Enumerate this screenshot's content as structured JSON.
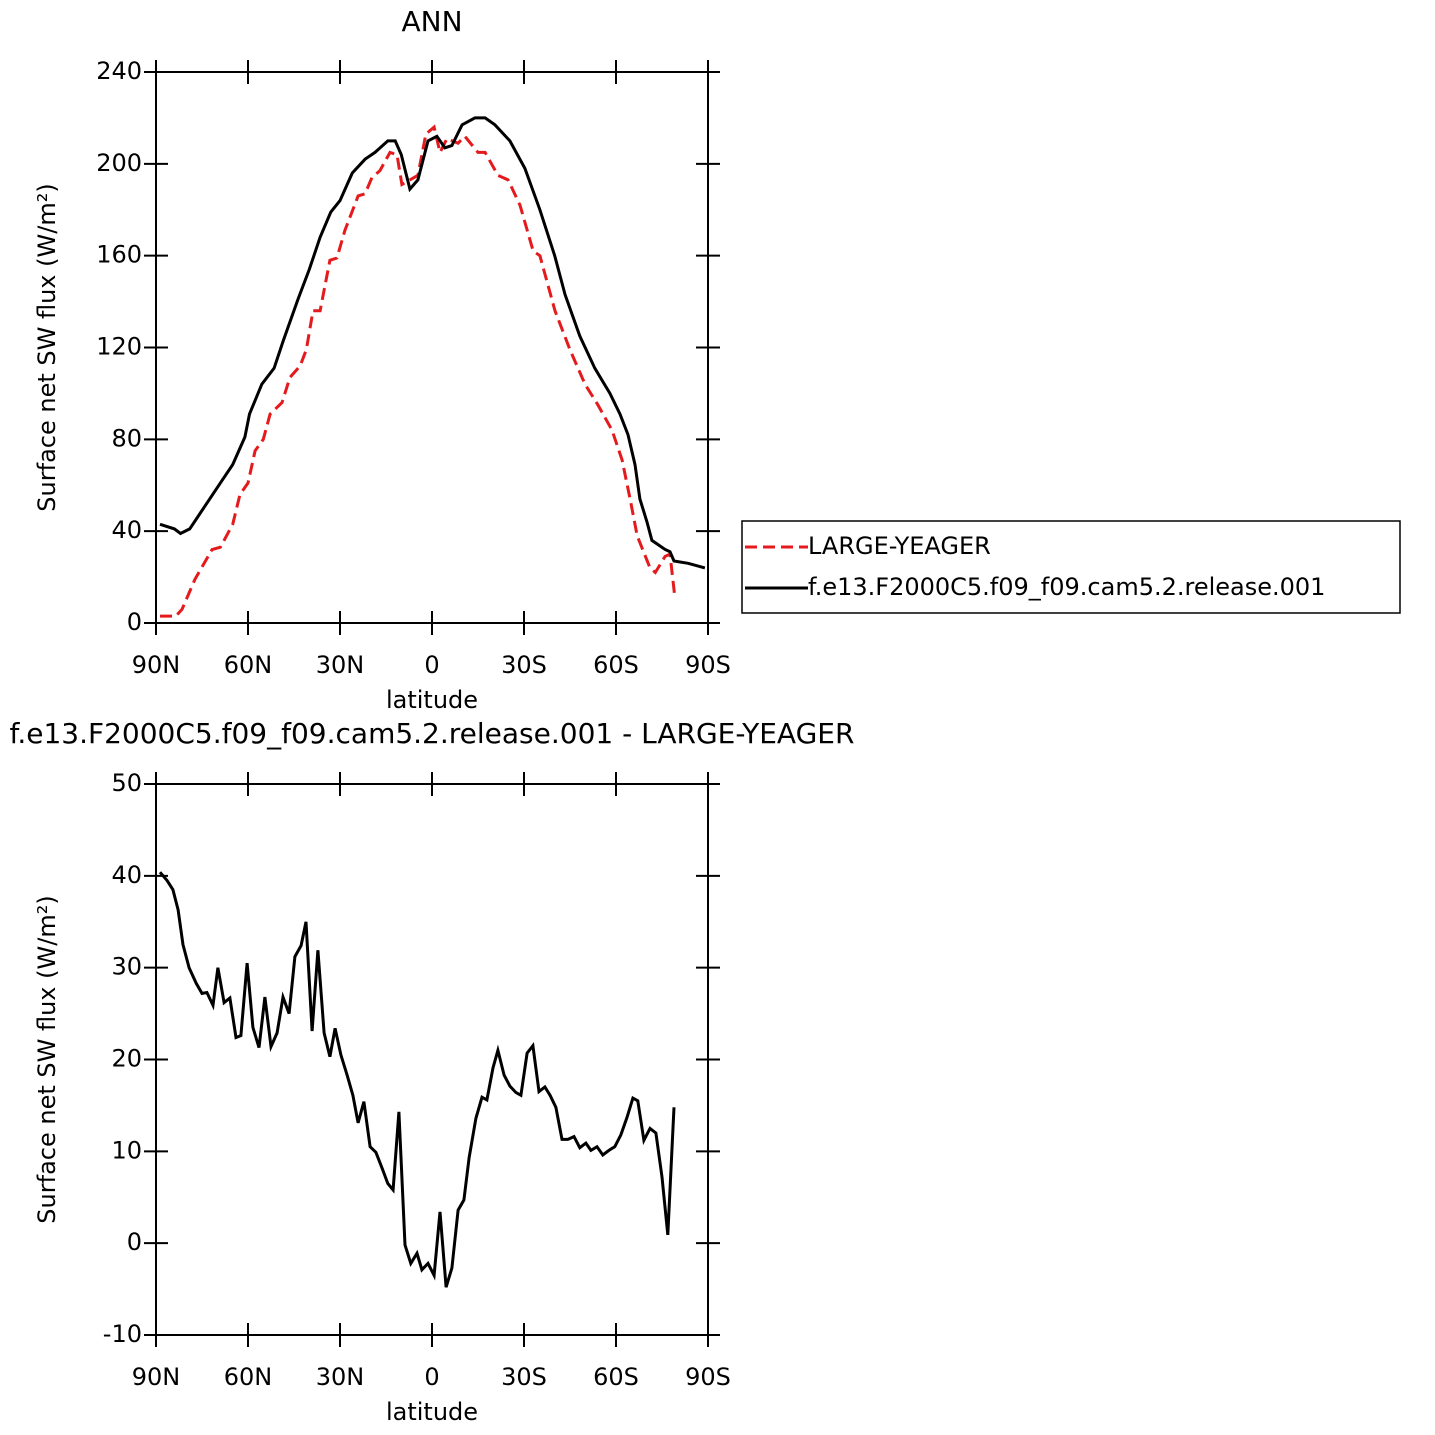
{
  "chart_data": [
    {
      "type": "line",
      "title": "ANN",
      "x_label": "latitude",
      "y_label": "Surface net SW flux (W/m²)",
      "xlim": [
        90,
        -90
      ],
      "ylim": [
        0,
        240
      ],
      "xticks": [
        {
          "value": 90,
          "label": "90N"
        },
        {
          "value": 60,
          "label": "60N"
        },
        {
          "value": 30,
          "label": "30N"
        },
        0,
        {
          "value": -30,
          "label": "30S"
        },
        {
          "value": -60,
          "label": "60S"
        },
        {
          "value": -90,
          "label": "90S"
        }
      ],
      "yticks": [
        0,
        40,
        80,
        120,
        160,
        200,
        240
      ],
      "legend": "right",
      "series": [
        {
          "name": "LARGE-YEAGER",
          "color": "#e41a1c",
          "style": "dashed",
          "x": [
            88.7,
            83.5,
            81.5,
            77.3,
            71.7,
            69,
            65,
            62.6,
            60,
            57.7,
            55,
            52.8,
            48.9,
            46.3,
            43,
            41,
            38.8,
            36.5,
            33.3,
            31,
            28.4,
            24.1,
            21.8,
            19.6,
            17,
            13.7,
            11.4,
            9.8,
            7.2,
            4.6,
            2,
            -0.7,
            -2.6,
            -4.9,
            -8.5,
            -10.7,
            -15,
            -17.3,
            -21.5,
            -24.8,
            -28.7,
            -33,
            -35.2,
            -40.1,
            -45,
            -49.9,
            -54.1,
            -58.7,
            -62,
            -64.6,
            -66.9,
            -71.1,
            -72.8,
            -76,
            -77.6,
            -79.2
          ],
          "values": [
            3,
            3,
            6,
            19,
            32,
            33,
            43,
            56,
            61,
            75,
            80,
            91,
            96,
            107,
            112,
            119,
            136,
            136,
            158,
            159,
            171,
            186,
            187,
            194,
            197,
            205,
            204,
            191,
            193,
            195,
            213,
            216,
            205,
            211,
            209,
            212,
            205,
            205,
            195,
            193,
            182,
            162,
            160,
            136,
            119,
            104,
            95,
            84,
            71,
            54,
            38,
            24,
            22,
            29,
            30,
            11
          ]
        },
        {
          "name": "f.e13.F2000C5.f09_f09.cam5.2.release.001",
          "color": "#000000",
          "style": "solid",
          "x": [
            88.7,
            84,
            82,
            79,
            75,
            68.5,
            65,
            61,
            59.5,
            55.5,
            51.5,
            48.5,
            43.7,
            40,
            36.5,
            33,
            30,
            26,
            21.8,
            18.6,
            14.4,
            12,
            10,
            7.2,
            4.6,
            1.3,
            -1.6,
            -4.2,
            -6.5,
            -9.8,
            -14,
            -17.3,
            -20.5,
            -25.4,
            -30.3,
            -35.2,
            -40,
            -43.4,
            -48.2,
            -53.1,
            -58,
            -61.3,
            -63.9,
            -66.2,
            -67.8,
            -70.1,
            -71.7,
            -76,
            -77.6,
            -78.9,
            -83.5,
            -89
          ],
          "values": [
            43,
            41,
            39,
            41,
            49,
            62,
            69,
            81,
            91,
            104,
            111,
            123,
            141,
            154,
            168,
            179,
            184,
            196,
            202,
            205,
            210,
            210,
            204,
            189,
            193,
            210,
            212,
            207,
            208,
            217,
            220,
            220,
            217,
            210,
            198,
            180,
            160,
            143,
            125,
            111,
            100,
            91,
            82,
            69,
            54,
            44,
            36,
            32,
            31,
            27,
            26,
            24
          ]
        }
      ]
    },
    {
      "type": "line",
      "title": "f.e13.F2000C5.f09_f09.cam5.2.release.001 - LARGE-YEAGER",
      "x_label": "latitude",
      "y_label": "Surface net SW flux (W/m²)",
      "xlim": [
        90,
        -90
      ],
      "ylim": [
        -10,
        50
      ],
      "xticks": [
        {
          "value": 90,
          "label": "90N"
        },
        {
          "value": 60,
          "label": "60N"
        },
        {
          "value": 30,
          "label": "30N"
        },
        0,
        {
          "value": -30,
          "label": "30S"
        },
        {
          "value": -60,
          "label": "60S"
        },
        {
          "value": -90,
          "label": "90S"
        }
      ],
      "yticks": [
        -10,
        0,
        10,
        20,
        30,
        40,
        50
      ],
      "series": [
        {
          "color": "#000000",
          "style": "solid",
          "x": [
            88.7,
            86.4,
            84.5,
            82.8,
            81.2,
            79.2,
            76.9,
            75,
            73.4,
            71.4,
            69.8,
            67.8,
            65.9,
            63.9,
            62.3,
            60.3,
            58.4,
            56.4,
            54.5,
            52.5,
            50.5,
            48.6,
            46.6,
            44.7,
            42.7,
            41.1,
            39.1,
            37.2,
            35.2,
            33.3,
            31.6,
            29.7,
            27.7,
            25.8,
            24.1,
            22.2,
            20.2,
            18.3,
            16.3,
            14.4,
            12.7,
            10.8,
            8.8,
            6.9,
            4.9,
            3.3,
            1.3,
            -0.7,
            -2.6,
            -4.6,
            -6.5,
            -8.5,
            -10.4,
            -12.1,
            -14.3,
            -16.3,
            -17.9,
            -19.9,
            -21.5,
            -23.5,
            -25.4,
            -27.4,
            -29,
            -31,
            -32.9,
            -34.9,
            -36.8,
            -38.5,
            -40.4,
            -42.4,
            -44.3,
            -46.3,
            -48.2,
            -50.2,
            -51.8,
            -53.8,
            -55.7,
            -57.7,
            -59.6,
            -61.6,
            -63.6,
            -65.5,
            -67.1,
            -69.1,
            -71.1,
            -73,
            -75,
            -76.9,
            -78.9
          ],
          "values": [
            40.4,
            39.5,
            38.5,
            36.3,
            32.5,
            30,
            28.3,
            27.2,
            27.3,
            25.9,
            30,
            26.2,
            26.7,
            22.4,
            22.6,
            30.5,
            23.5,
            21.3,
            26.8,
            21.4,
            22.9,
            26.8,
            25,
            31.2,
            32.4,
            35,
            23.1,
            31.9,
            22.9,
            20.3,
            23.4,
            20.5,
            18.3,
            16.1,
            13.1,
            15.4,
            10.5,
            9.9,
            8.2,
            6.5,
            5.8,
            14.3,
            -0.2,
            -2.2,
            -1.1,
            -2.9,
            -2.2,
            -3.5,
            3.4,
            -4.8,
            -2.7,
            3.6,
            4.7,
            9.3,
            13.6,
            15.9,
            15.6,
            19.1,
            21,
            18.3,
            17.1,
            16.4,
            16.1,
            20.7,
            21.5,
            16.5,
            17,
            16.1,
            14.8,
            11.3,
            11.3,
            11.6,
            10.4,
            10.9,
            10.1,
            10.5,
            9.6,
            10.1,
            10.5,
            11.8,
            13.7,
            15.8,
            15.5,
            11.2,
            12.5,
            12,
            7.2,
            0.9,
            14.8
          ]
        }
      ]
    }
  ]
}
